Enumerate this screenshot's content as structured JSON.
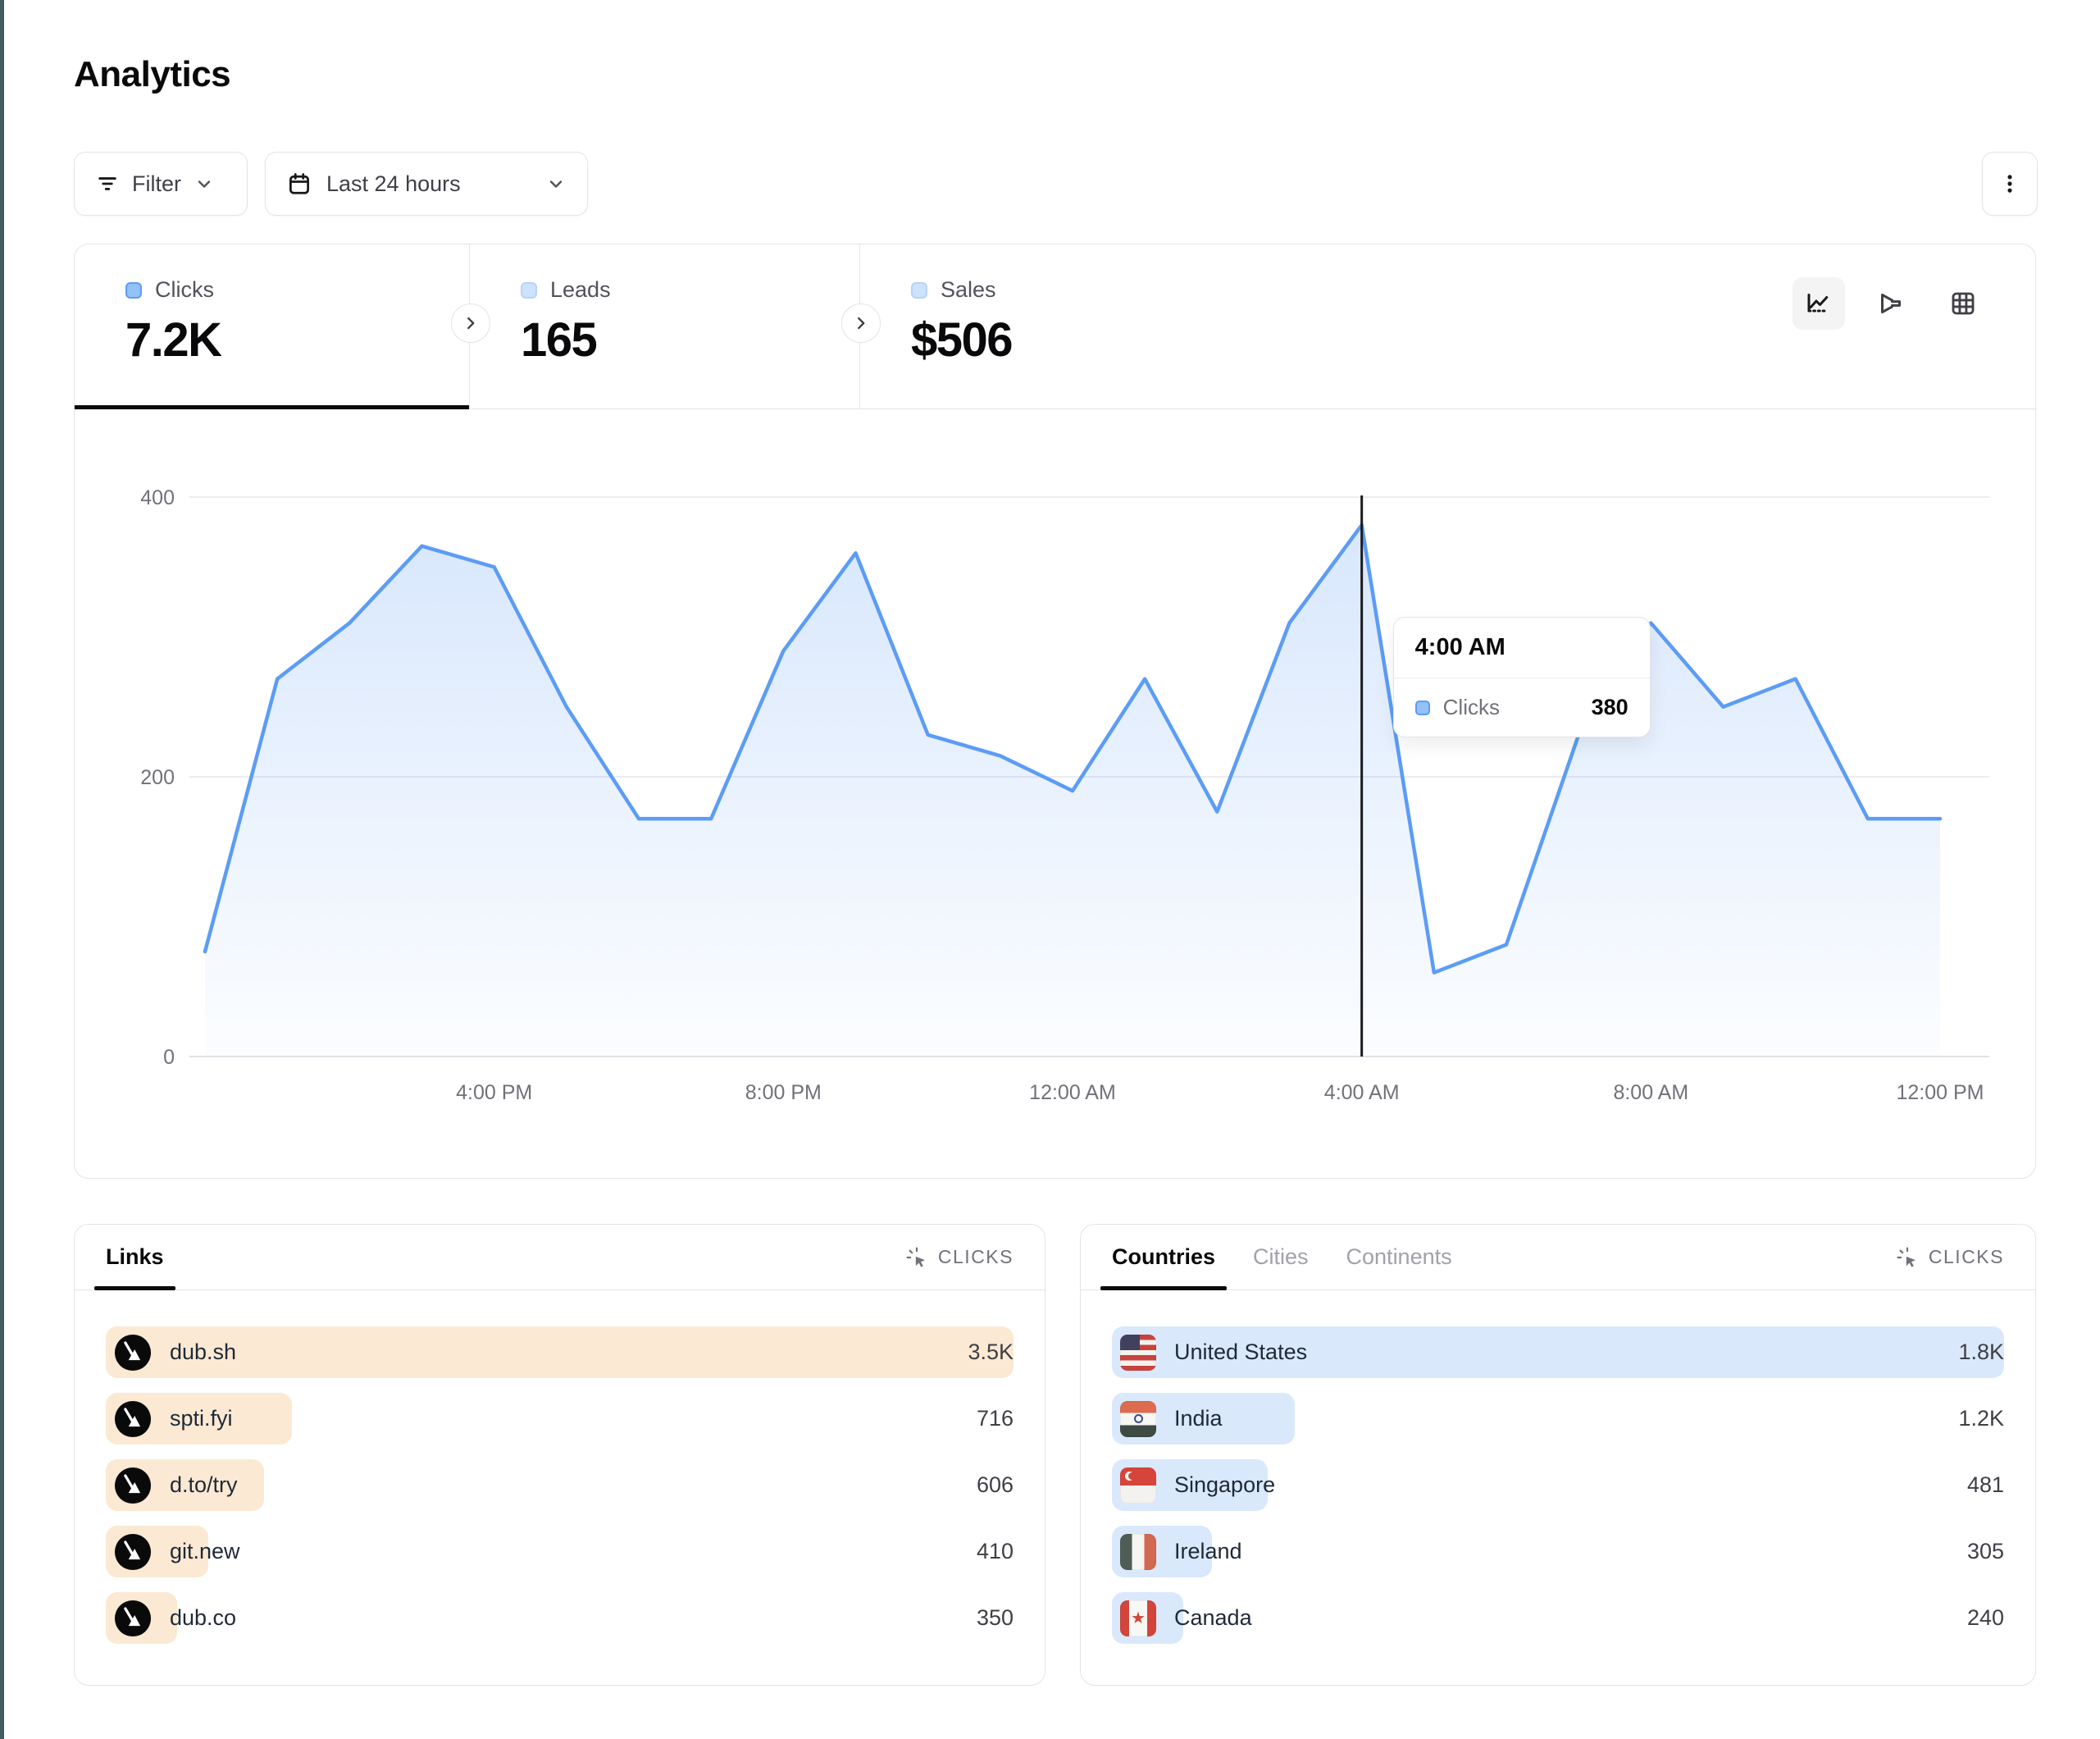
{
  "page": {
    "title": "Analytics",
    "accent_edge_color": "#435a5e"
  },
  "toolbar": {
    "filter": {
      "label": "Filter"
    },
    "date_range": {
      "label": "Last 24 hours"
    }
  },
  "icons": {
    "filter": "filter-lines",
    "calendar": "calendar",
    "chevron_down": "chevron-down",
    "kebab": "dots-vertical",
    "chevron_right": "chevron-right",
    "line_chart": "line-chart",
    "funnel": "funnel-right",
    "table": "grid-table",
    "clicks_metric": "cursor-rays",
    "row_logo": "dub-logo"
  },
  "stats": {
    "items": [
      {
        "label": "Clicks",
        "value": "7.2K",
        "active": true
      },
      {
        "label": "Leads",
        "value": "165",
        "active": false
      },
      {
        "label": "Sales",
        "value": "$506",
        "active": false
      }
    ]
  },
  "chart_data": {
    "type": "area",
    "series_name": "Clicks",
    "x_start_label": "12:00 PM",
    "x_step_hours": 1,
    "values": [
      75,
      270,
      310,
      365,
      350,
      250,
      170,
      170,
      290,
      360,
      230,
      215,
      190,
      270,
      175,
      310,
      380,
      60,
      80,
      230,
      310,
      250,
      270,
      170,
      170
    ],
    "x_tick_labels": [
      "4:00 PM",
      "8:00 PM",
      "12:00 AM",
      "4:00 AM",
      "8:00 AM",
      "12:00 PM"
    ],
    "x_tick_indices": [
      4,
      8,
      12,
      16,
      20,
      24
    ],
    "ylim": [
      0,
      400
    ],
    "yticks": [
      0,
      200,
      400
    ],
    "grid": "horizontal-only",
    "line_color": "#5c9cf5",
    "fill_color": "#5c9cf5",
    "crosshair_index": 16,
    "tooltip": {
      "time": "4:00 AM",
      "series": "Clicks",
      "value": "380",
      "x_index": 16
    }
  },
  "links_panel": {
    "tabs": [
      {
        "label": "Links",
        "active": true
      }
    ],
    "metric_label": "CLICKS",
    "bar_color": "#fbe9d3",
    "rows": [
      {
        "label": "dub.sh",
        "value": "3.5K",
        "bar_pct": 100
      },
      {
        "label": "spti.fyi",
        "value": "716",
        "bar_pct": 20.5
      },
      {
        "label": "d.to/try",
        "value": "606",
        "bar_pct": 17.4
      },
      {
        "label": "git.new",
        "value": "410",
        "bar_pct": 11.3
      },
      {
        "label": "dub.co",
        "value": "350",
        "bar_pct": 7.9
      }
    ]
  },
  "countries_panel": {
    "tabs": [
      {
        "label": "Countries",
        "active": true
      },
      {
        "label": "Cities",
        "active": false
      },
      {
        "label": "Continents",
        "active": false
      }
    ],
    "metric_label": "CLICKS",
    "bar_color": "#d9e8fb",
    "rows": [
      {
        "label": "United States",
        "flag": "us",
        "value": "1.8K",
        "bar_pct": 100
      },
      {
        "label": "India",
        "flag": "in",
        "value": "1.2K",
        "bar_pct": 20.5
      },
      {
        "label": "Singapore",
        "flag": "sg",
        "value": "481",
        "bar_pct": 17.5
      },
      {
        "label": "Ireland",
        "flag": "ie",
        "value": "305",
        "bar_pct": 11.2
      },
      {
        "label": "Canada",
        "flag": "ca",
        "value": "240",
        "bar_pct": 8.0
      }
    ]
  }
}
